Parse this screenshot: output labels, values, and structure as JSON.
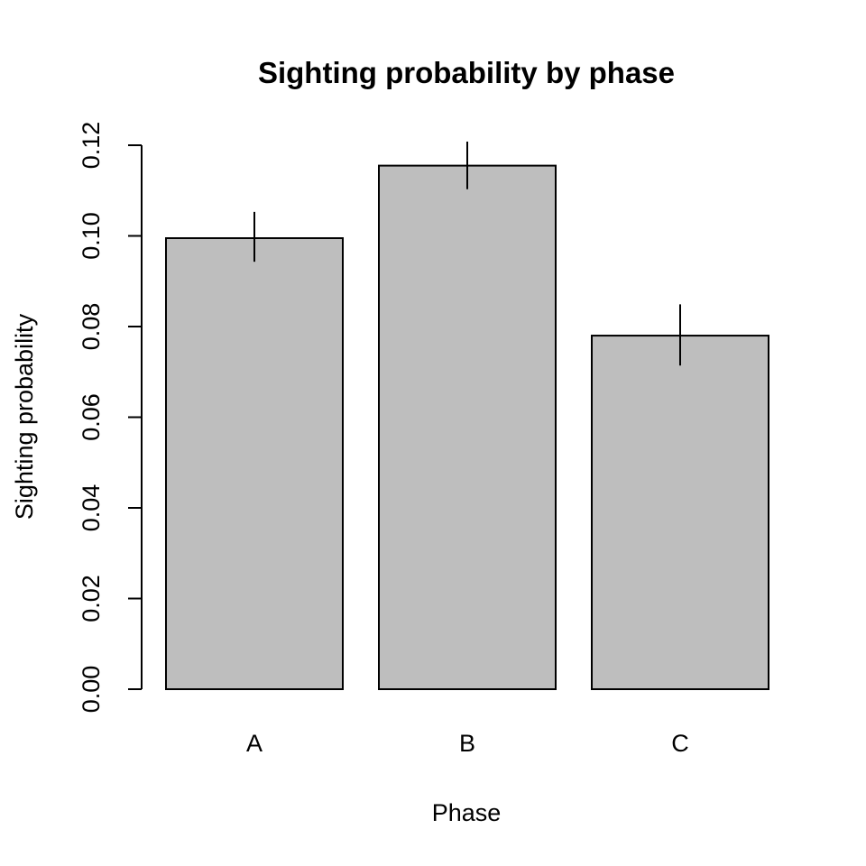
{
  "chart_data": {
    "type": "bar",
    "title": "Sighting probability by phase",
    "xlabel": "Phase",
    "ylabel": "Sighting probability",
    "categories": [
      "A",
      "B",
      "C"
    ],
    "values": [
      0.0995,
      0.1155,
      0.078
    ],
    "error_bars": [
      {
        "low": 0.0943,
        "high": 0.1053
      },
      {
        "low": 0.1103,
        "high": 0.1208
      },
      {
        "low": 0.0714,
        "high": 0.0849
      }
    ],
    "yticks": [
      "0.00",
      "0.02",
      "0.04",
      "0.06",
      "0.08",
      "0.10",
      "0.12"
    ],
    "ylim": [
      0,
      0.12
    ],
    "bar_color": "#bebebe",
    "grid": false
  }
}
